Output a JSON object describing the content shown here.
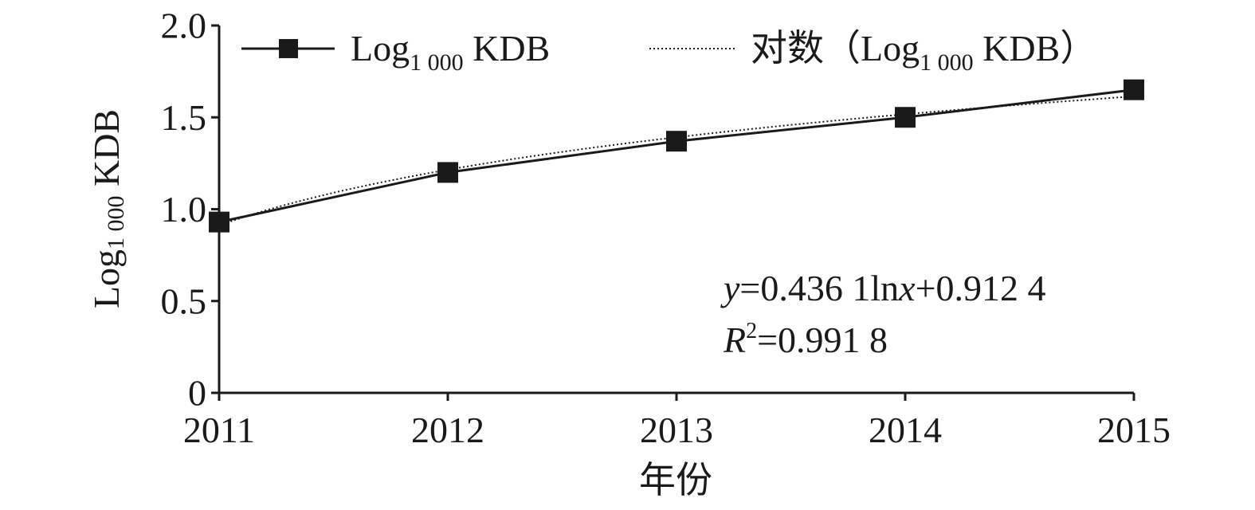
{
  "chart_data": {
    "type": "line",
    "x": [
      2011,
      2012,
      2013,
      2014,
      2015
    ],
    "x_tick_labels": [
      "2011",
      "2012",
      "2013",
      "2014",
      "2015"
    ],
    "y_tick_labels": [
      "0",
      "0.5",
      "1.0",
      "1.5",
      "2.0"
    ],
    "xlabel": "年份",
    "ylabel": {
      "base": "Log",
      "sub": "1 000",
      "rest": " KDB"
    },
    "ylim": [
      0,
      2.0
    ],
    "grid": false,
    "legend_position": "top",
    "series": [
      {
        "name": {
          "base": "Log",
          "sub": "1 000",
          "rest": " KDB"
        },
        "values": [
          0.93,
          1.2,
          1.37,
          1.5,
          1.65
        ],
        "style": "solid-square-markers",
        "color": "#1a1a1a"
      }
    ],
    "trendline": {
      "name": {
        "prefix": "对数（",
        "base": "Log",
        "sub": "1 000",
        "rest": " KDB）"
      },
      "type": "logarithmic",
      "a": 0.4361,
      "b": 0.9124,
      "style": "dotted",
      "color": "#1a1a1a"
    },
    "annotations": {
      "equation": {
        "y": "y",
        "eq": "=0.436 1ln",
        "x": "x",
        "rest": "+0.912 4"
      },
      "r2": {
        "r": "R",
        "sup": "2",
        "rest": "=0.991 8"
      }
    }
  }
}
